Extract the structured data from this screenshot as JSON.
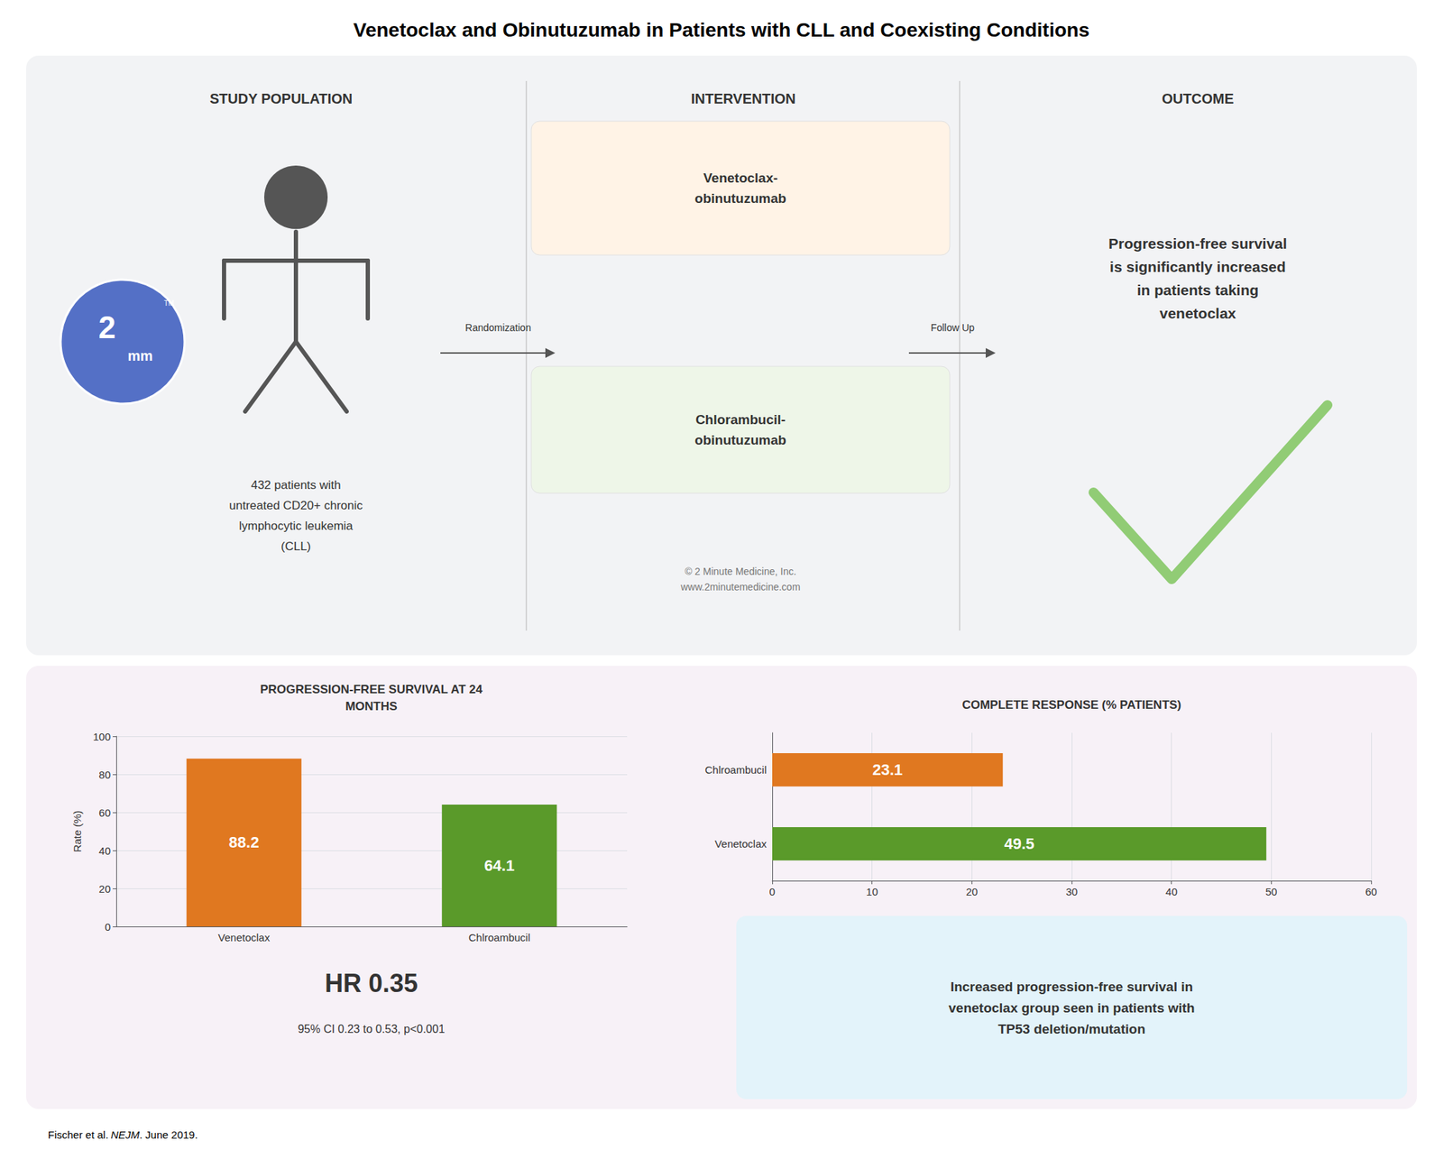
{
  "title": "Venetoclax and Obinutuzumab in Patients with CLL and Coexisting Conditions",
  "annotations": [
    "STUDY POPULATION",
    "INTERVENTION",
    "OUTCOME",
    "2",
    "mm",
    "TM",
    "432 patients with\nuntreated CD20+ chronic\nlymphocytic leukemia\n(CLL)",
    "Randomization",
    "Venetoclax-\nobinutuzumab",
    "Chlorambucil-\nobinutuzumab",
    "© 2 Minute Medicine, Inc.\nwww.2minutemedicine.com",
    "Follow Up",
    "Progression-free survival\nis significantly increased\nin patients taking\nvenetoclax",
    "HR 0.35",
    "95% CI 0.23 to 0.53, p<0.001",
    "Increased progression-free survival in\nvenetoclax group seen in patients with\nTP53 deletion/mutation",
    "Fischer et al.",
    "NEJM",
    ". June 2019."
  ],
  "chart_data": [
    {
      "type": "bar",
      "title": "PROGRESSION-FREE SURVIVAL AT 24\nMONTHS",
      "categories": [
        "Venetoclax",
        "Chlroambucil"
      ],
      "values": [
        88.2,
        64.1
      ],
      "colors": [
        "#e07820",
        "#5a9a2a"
      ],
      "ylabel": "Rate (%)",
      "ylim": [
        0,
        100
      ],
      "yticks": [
        0,
        20,
        40,
        60,
        80,
        100
      ],
      "grid": true,
      "data_labels": true
    },
    {
      "type": "bar",
      "orientation": "horizontal",
      "title": "COMPLETE RESPONSE (% PATIENTS)",
      "categories": [
        "Chlroambucil",
        "Venetoclax"
      ],
      "values": [
        23.1,
        49.5
      ],
      "colors": [
        "#e07820",
        "#5a9a2a"
      ],
      "xlim": [
        0,
        60
      ],
      "xticks": [
        0,
        10,
        20,
        30,
        40,
        50,
        60
      ],
      "grid": true,
      "data_labels": true
    }
  ]
}
